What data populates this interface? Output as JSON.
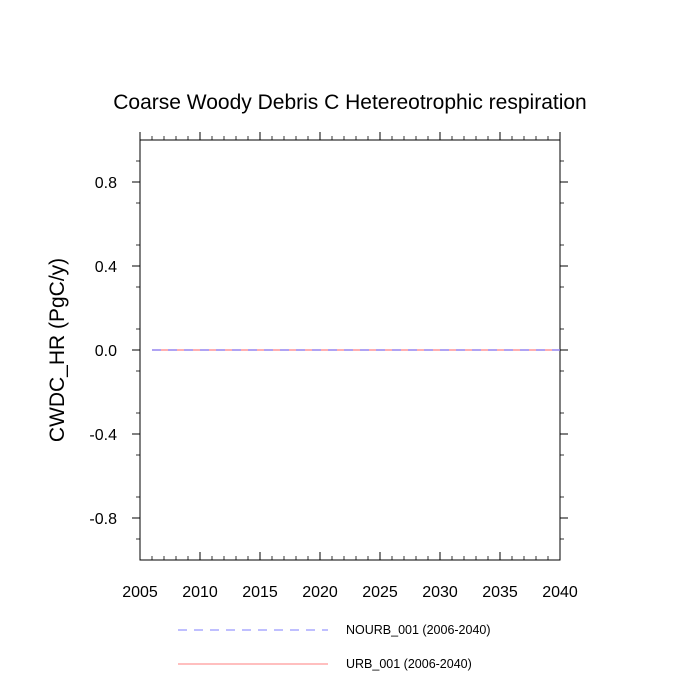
{
  "chart_data": {
    "type": "line",
    "title": "Coarse Woody Debris C Hetereotrophic respiration",
    "xlabel": "",
    "ylabel": "CWDC_HR  (PgC/y)",
    "xlim": [
      2005,
      2040
    ],
    "ylim": [
      -1.0,
      1.0
    ],
    "x_ticks": [
      2005,
      2010,
      2015,
      2020,
      2025,
      2030,
      2035,
      2040
    ],
    "x_tick_labels": [
      "2005",
      "2010",
      "2015",
      "2020",
      "2025",
      "2030",
      "2035",
      "2040"
    ],
    "y_ticks": [
      -0.8,
      -0.4,
      0.0,
      0.4,
      0.8
    ],
    "y_tick_labels": [
      "-0.8",
      "-0.4",
      "0.0",
      "0.4",
      "0.8"
    ],
    "grid": false,
    "legend_position": "bottom",
    "x": [
      2006,
      2007,
      2008,
      2009,
      2010,
      2011,
      2012,
      2013,
      2014,
      2015,
      2016,
      2017,
      2018,
      2019,
      2020,
      2021,
      2022,
      2023,
      2024,
      2025,
      2026,
      2027,
      2028,
      2029,
      2030,
      2031,
      2032,
      2033,
      2034,
      2035,
      2036,
      2037,
      2038,
      2039,
      2040
    ],
    "series": [
      {
        "name": "NOURB_001 (2006-2040)",
        "color": "#7f7fff",
        "dash": "dashed",
        "values": [
          0,
          0,
          0,
          0,
          0,
          0,
          0,
          0,
          0,
          0,
          0,
          0,
          0,
          0,
          0,
          0,
          0,
          0,
          0,
          0,
          0,
          0,
          0,
          0,
          0,
          0,
          0,
          0,
          0,
          0,
          0,
          0,
          0,
          0,
          0
        ]
      },
      {
        "name": "URB_001 (2006-2040)",
        "color": "#ff7f7f",
        "dash": "solid",
        "values": [
          0,
          0,
          0,
          0,
          0,
          0,
          0,
          0,
          0,
          0,
          0,
          0,
          0,
          0,
          0,
          0,
          0,
          0,
          0,
          0,
          0,
          0,
          0,
          0,
          0,
          0,
          0,
          0,
          0,
          0,
          0,
          0,
          0,
          0,
          0
        ]
      }
    ]
  }
}
